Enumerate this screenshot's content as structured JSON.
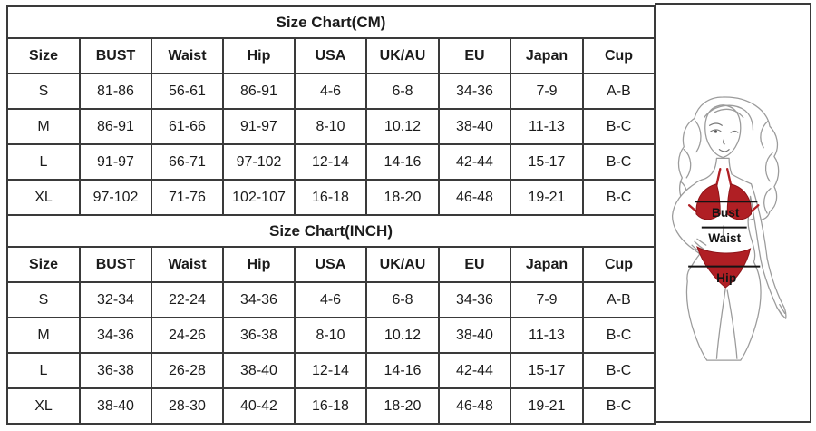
{
  "colors": {
    "bikini": "#b01f24",
    "bikini-dark": "#8d1418",
    "outline": "#9b9b9b",
    "ink": "#1b1b1b",
    "border": "#3a3a3a"
  },
  "tables": [
    {
      "title": "Size Chart(CM)",
      "headers": [
        "Size",
        "BUST",
        "Waist",
        "Hip",
        "USA",
        "UK/AU",
        "EU",
        "Japan",
        "Cup"
      ],
      "rows": [
        [
          "S",
          "81-86",
          "56-61",
          "86-91",
          "4-6",
          "6-8",
          "34-36",
          "7-9",
          "A-B"
        ],
        [
          "M",
          "86-91",
          "61-66",
          "91-97",
          "8-10",
          "10.12",
          "38-40",
          "11-13",
          "B-C"
        ],
        [
          "L",
          "91-97",
          "66-71",
          "97-102",
          "12-14",
          "14-16",
          "42-44",
          "15-17",
          "B-C"
        ],
        [
          "XL",
          "97-102",
          "71-76",
          "102-107",
          "16-18",
          "18-20",
          "46-48",
          "19-21",
          "B-C"
        ]
      ]
    },
    {
      "title": "Size Chart(INCH)",
      "headers": [
        "Size",
        "BUST",
        "Waist",
        "Hip",
        "USA",
        "UK/AU",
        "EU",
        "Japan",
        "Cup"
      ],
      "rows": [
        [
          "S",
          "32-34",
          "22-24",
          "34-36",
          "4-6",
          "6-8",
          "34-36",
          "7-9",
          "A-B"
        ],
        [
          "M",
          "34-36",
          "24-26",
          "36-38",
          "8-10",
          "10.12",
          "38-40",
          "11-13",
          "B-C"
        ],
        [
          "L",
          "36-38",
          "26-28",
          "38-40",
          "12-14",
          "14-16",
          "42-44",
          "15-17",
          "B-C"
        ],
        [
          "XL",
          "38-40",
          "28-30",
          "40-42",
          "16-18",
          "18-20",
          "46-48",
          "19-21",
          "B-C"
        ]
      ]
    }
  ],
  "figure": {
    "labels": {
      "bust": "Bust",
      "waist": "Waist",
      "hip": "Hip"
    }
  }
}
